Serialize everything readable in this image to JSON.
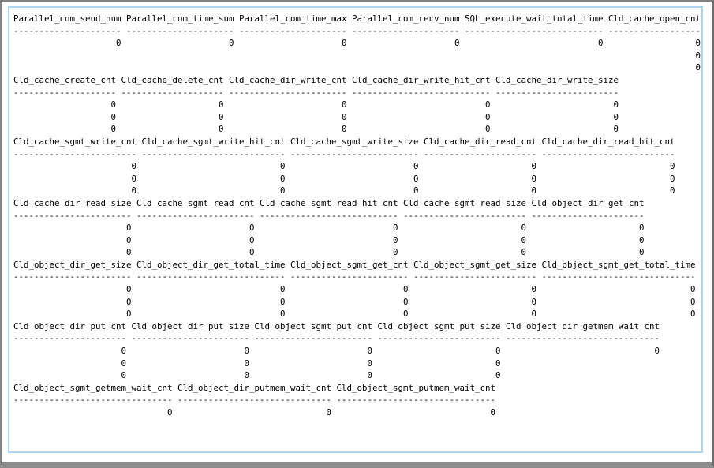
{
  "window": {
    "background": "#ffffff",
    "frame_color": "#828282",
    "inner_border_color": "#aed5f2",
    "text_color": "#000000"
  },
  "output": {
    "kind": "database-statistics-console-output",
    "blocks": [
      {
        "columns": [
          {
            "header": "Parallel_com_send_num",
            "values": [
              "0"
            ]
          },
          {
            "header": "Parallel_com_time_sum",
            "values": [
              "0"
            ]
          },
          {
            "header": "Parallel_com_time_max",
            "values": [
              "0"
            ]
          },
          {
            "header": "Parallel_com_recv_num",
            "values": [
              "0"
            ]
          },
          {
            "header": "SQL_execute_wait_total_time",
            "values": [
              "0"
            ]
          },
          {
            "header": "Cld_cache_open_cnt",
            "values": [
              "0",
              "0",
              "0"
            ]
          }
        ]
      },
      {
        "columns": [
          {
            "header": "Cld_cache_create_cnt",
            "values": [
              "0",
              "0",
              "0"
            ]
          },
          {
            "header": "Cld_cache_delete_cnt",
            "values": [
              "0",
              "0",
              "0"
            ]
          },
          {
            "header": "Cld_cache_dir_write_cnt",
            "values": [
              "0",
              "0",
              "0"
            ]
          },
          {
            "header": "Cld_cache_dir_write_hit_cnt",
            "values": [
              "0",
              "0",
              "0"
            ]
          },
          {
            "header": "Cld_cache_dir_write_size",
            "values": [
              "0",
              "0",
              "0"
            ]
          }
        ]
      },
      {
        "columns": [
          {
            "header": "Cld_cache_sgmt_write_cnt",
            "values": [
              "0",
              "0",
              "0"
            ]
          },
          {
            "header": "Cld_cache_sgmt_write_hit_cnt",
            "values": [
              "0",
              "0",
              "0"
            ]
          },
          {
            "header": "Cld_cache_sgmt_write_size",
            "values": [
              "0",
              "0",
              "0"
            ]
          },
          {
            "header": "Cld_cache_dir_read_cnt",
            "values": [
              "0",
              "0",
              "0"
            ]
          },
          {
            "header": "Cld_cache_dir_read_hit_cnt",
            "values": [
              "0",
              "0",
              "0"
            ]
          }
        ]
      },
      {
        "columns": [
          {
            "header": "Cld_cache_dir_read_size",
            "values": [
              "0",
              "0",
              "0"
            ]
          },
          {
            "header": "Cld_cache_sgmt_read_cnt",
            "values": [
              "0",
              "0",
              "0"
            ]
          },
          {
            "header": "Cld_cache_sgmt_read_hit_cnt",
            "values": [
              "0",
              "0",
              "0"
            ]
          },
          {
            "header": "Cld_cache_sgmt_read_size",
            "values": [
              "0",
              "0",
              "0"
            ]
          },
          {
            "header": "Cld_object_dir_get_cnt",
            "values": [
              "0",
              "0",
              "0"
            ]
          }
        ]
      },
      {
        "columns": [
          {
            "header": "Cld_object_dir_get_size",
            "values": [
              "0",
              "0",
              "0"
            ]
          },
          {
            "header": "Cld_object_dir_get_total_time",
            "values": [
              "0",
              "0",
              "0"
            ]
          },
          {
            "header": "Cld_object_sgmt_get_cnt",
            "values": [
              "0",
              "0",
              "0"
            ]
          },
          {
            "header": "Cld_object_sgmt_get_size",
            "values": [
              "0",
              "0",
              "0"
            ]
          },
          {
            "header": "Cld_object_sgmt_get_total_time",
            "values": [
              "0",
              "0",
              "0"
            ]
          }
        ]
      },
      {
        "columns": [
          {
            "header": "Cld_object_dir_put_cnt",
            "values": [
              "0",
              "0",
              "0"
            ]
          },
          {
            "header": "Cld_object_dir_put_size",
            "values": [
              "0",
              "0",
              "0"
            ]
          },
          {
            "header": "Cld_object_sgmt_put_cnt",
            "values": [
              "0",
              "0",
              "0"
            ]
          },
          {
            "header": "Cld_object_sgmt_put_size",
            "values": [
              "0",
              "0",
              "0"
            ]
          },
          {
            "header": "Cld_object_dir_getmem_wait_cnt",
            "values": [
              "0"
            ]
          }
        ]
      },
      {
        "columns": [
          {
            "header": "Cld_object_sgmt_getmem_wait_cnt",
            "values": [
              "0"
            ]
          },
          {
            "header": "Cld_object_dir_putmem_wait_cnt",
            "values": [
              "0"
            ]
          },
          {
            "header": "Cld_object_sgmt_putmem_wait_cnt",
            "values": [
              "0"
            ]
          }
        ]
      }
    ]
  }
}
